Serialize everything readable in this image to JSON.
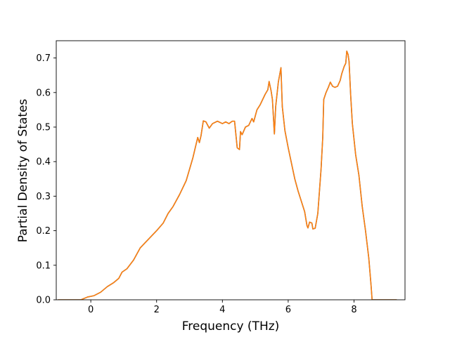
{
  "chart_data": {
    "type": "line",
    "title": "",
    "xlabel": "Frequency (THz)",
    "ylabel": "Partial Density of States",
    "xlim": [
      -1.05,
      9.55
    ],
    "ylim": [
      0.0,
      0.75
    ],
    "xticks": [
      0,
      2,
      4,
      6,
      8
    ],
    "yticks": [
      0.0,
      0.1,
      0.2,
      0.3,
      0.4,
      0.5,
      0.6,
      0.7
    ],
    "xtick_labels": [
      "0",
      "2",
      "4",
      "6",
      "8"
    ],
    "ytick_labels": [
      "0.0",
      "0.1",
      "0.2",
      "0.3",
      "0.4",
      "0.5",
      "0.6",
      "0.7"
    ],
    "grid": false,
    "legend": null,
    "series": [
      {
        "color": "#1f77b4",
        "points": [
          [
            -1.0,
            0.0
          ],
          [
            -0.3,
            0.0
          ],
          [
            -0.1,
            0.008
          ],
          [
            0.1,
            0.012
          ],
          [
            0.3,
            0.022
          ],
          [
            0.5,
            0.038
          ],
          [
            0.7,
            0.05
          ],
          [
            0.85,
            0.062
          ],
          [
            0.95,
            0.08
          ],
          [
            1.1,
            0.09
          ],
          [
            1.3,
            0.115
          ],
          [
            1.5,
            0.15
          ],
          [
            1.7,
            0.17
          ],
          [
            1.85,
            0.185
          ],
          [
            2.0,
            0.2
          ],
          [
            2.2,
            0.222
          ],
          [
            2.35,
            0.25
          ],
          [
            2.5,
            0.27
          ],
          [
            2.7,
            0.305
          ],
          [
            2.9,
            0.345
          ],
          [
            3.1,
            0.41
          ],
          [
            3.2,
            0.45
          ],
          [
            3.25,
            0.47
          ],
          [
            3.3,
            0.455
          ],
          [
            3.35,
            0.475
          ],
          [
            3.42,
            0.518
          ],
          [
            3.5,
            0.515
          ],
          [
            3.6,
            0.497
          ],
          [
            3.7,
            0.51
          ],
          [
            3.85,
            0.517
          ],
          [
            4.0,
            0.51
          ],
          [
            4.1,
            0.515
          ],
          [
            4.2,
            0.51
          ],
          [
            4.3,
            0.517
          ],
          [
            4.37,
            0.517
          ],
          [
            4.45,
            0.44
          ],
          [
            4.52,
            0.435
          ],
          [
            4.55,
            0.487
          ],
          [
            4.6,
            0.478
          ],
          [
            4.7,
            0.5
          ],
          [
            4.8,
            0.505
          ],
          [
            4.9,
            0.525
          ],
          [
            4.95,
            0.515
          ],
          [
            5.05,
            0.55
          ],
          [
            5.15,
            0.565
          ],
          [
            5.3,
            0.595
          ],
          [
            5.38,
            0.608
          ],
          [
            5.42,
            0.632
          ],
          [
            5.48,
            0.605
          ],
          [
            5.52,
            0.58
          ],
          [
            5.58,
            0.48
          ],
          [
            5.62,
            0.56
          ],
          [
            5.7,
            0.63
          ],
          [
            5.78,
            0.672
          ],
          [
            5.82,
            0.56
          ],
          [
            5.9,
            0.49
          ],
          [
            6.0,
            0.44
          ],
          [
            6.1,
            0.395
          ],
          [
            6.2,
            0.35
          ],
          [
            6.3,
            0.315
          ],
          [
            6.4,
            0.285
          ],
          [
            6.5,
            0.255
          ],
          [
            6.57,
            0.215
          ],
          [
            6.6,
            0.208
          ],
          [
            6.65,
            0.225
          ],
          [
            6.72,
            0.222
          ],
          [
            6.75,
            0.205
          ],
          [
            6.82,
            0.207
          ],
          [
            6.9,
            0.25
          ],
          [
            7.0,
            0.38
          ],
          [
            7.05,
            0.47
          ],
          [
            7.08,
            0.58
          ],
          [
            7.15,
            0.6
          ],
          [
            7.22,
            0.615
          ],
          [
            7.28,
            0.63
          ],
          [
            7.35,
            0.618
          ],
          [
            7.42,
            0.615
          ],
          [
            7.5,
            0.618
          ],
          [
            7.58,
            0.635
          ],
          [
            7.63,
            0.655
          ],
          [
            7.7,
            0.675
          ],
          [
            7.75,
            0.685
          ],
          [
            7.78,
            0.72
          ],
          [
            7.82,
            0.71
          ],
          [
            7.85,
            0.69
          ],
          [
            7.9,
            0.59
          ],
          [
            7.95,
            0.51
          ],
          [
            8.05,
            0.42
          ],
          [
            8.15,
            0.36
          ],
          [
            8.25,
            0.27
          ],
          [
            8.35,
            0.2
          ],
          [
            8.45,
            0.12
          ],
          [
            8.52,
            0.04
          ],
          [
            8.55,
            0.0
          ],
          [
            9.3,
            0.0
          ]
        ]
      },
      {
        "color": "#ff7f0e",
        "points": [
          [
            -1.0,
            0.0
          ],
          [
            -0.3,
            0.0
          ],
          [
            -0.1,
            0.008
          ],
          [
            0.1,
            0.012
          ],
          [
            0.3,
            0.022
          ],
          [
            0.5,
            0.038
          ],
          [
            0.7,
            0.05
          ],
          [
            0.85,
            0.062
          ],
          [
            0.95,
            0.08
          ],
          [
            1.1,
            0.09
          ],
          [
            1.3,
            0.115
          ],
          [
            1.5,
            0.15
          ],
          [
            1.7,
            0.17
          ],
          [
            1.85,
            0.185
          ],
          [
            2.0,
            0.2
          ],
          [
            2.2,
            0.222
          ],
          [
            2.35,
            0.25
          ],
          [
            2.5,
            0.27
          ],
          [
            2.7,
            0.305
          ],
          [
            2.9,
            0.345
          ],
          [
            3.1,
            0.41
          ],
          [
            3.2,
            0.45
          ],
          [
            3.25,
            0.47
          ],
          [
            3.3,
            0.455
          ],
          [
            3.35,
            0.475
          ],
          [
            3.42,
            0.518
          ],
          [
            3.5,
            0.515
          ],
          [
            3.6,
            0.497
          ],
          [
            3.7,
            0.51
          ],
          [
            3.85,
            0.517
          ],
          [
            4.0,
            0.51
          ],
          [
            4.1,
            0.515
          ],
          [
            4.2,
            0.51
          ],
          [
            4.3,
            0.517
          ],
          [
            4.37,
            0.517
          ],
          [
            4.45,
            0.44
          ],
          [
            4.52,
            0.435
          ],
          [
            4.55,
            0.487
          ],
          [
            4.6,
            0.478
          ],
          [
            4.7,
            0.5
          ],
          [
            4.8,
            0.505
          ],
          [
            4.9,
            0.525
          ],
          [
            4.95,
            0.515
          ],
          [
            5.05,
            0.55
          ],
          [
            5.15,
            0.565
          ],
          [
            5.3,
            0.595
          ],
          [
            5.38,
            0.608
          ],
          [
            5.42,
            0.632
          ],
          [
            5.48,
            0.605
          ],
          [
            5.52,
            0.58
          ],
          [
            5.58,
            0.48
          ],
          [
            5.62,
            0.56
          ],
          [
            5.7,
            0.63
          ],
          [
            5.78,
            0.672
          ],
          [
            5.82,
            0.56
          ],
          [
            5.9,
            0.49
          ],
          [
            6.0,
            0.44
          ],
          [
            6.1,
            0.395
          ],
          [
            6.2,
            0.35
          ],
          [
            6.3,
            0.315
          ],
          [
            6.4,
            0.285
          ],
          [
            6.5,
            0.255
          ],
          [
            6.57,
            0.215
          ],
          [
            6.6,
            0.208
          ],
          [
            6.65,
            0.225
          ],
          [
            6.72,
            0.222
          ],
          [
            6.75,
            0.205
          ],
          [
            6.82,
            0.207
          ],
          [
            6.9,
            0.25
          ],
          [
            7.0,
            0.38
          ],
          [
            7.05,
            0.47
          ],
          [
            7.08,
            0.58
          ],
          [
            7.15,
            0.6
          ],
          [
            7.22,
            0.615
          ],
          [
            7.28,
            0.63
          ],
          [
            7.35,
            0.618
          ],
          [
            7.42,
            0.615
          ],
          [
            7.5,
            0.618
          ],
          [
            7.58,
            0.635
          ],
          [
            7.63,
            0.655
          ],
          [
            7.7,
            0.675
          ],
          [
            7.75,
            0.685
          ],
          [
            7.78,
            0.72
          ],
          [
            7.82,
            0.71
          ],
          [
            7.85,
            0.69
          ],
          [
            7.9,
            0.59
          ],
          [
            7.95,
            0.51
          ],
          [
            8.05,
            0.42
          ],
          [
            8.15,
            0.36
          ],
          [
            8.25,
            0.27
          ],
          [
            8.35,
            0.2
          ],
          [
            8.45,
            0.12
          ],
          [
            8.52,
            0.04
          ],
          [
            8.55,
            0.0
          ],
          [
            9.3,
            0.0
          ]
        ]
      }
    ]
  }
}
